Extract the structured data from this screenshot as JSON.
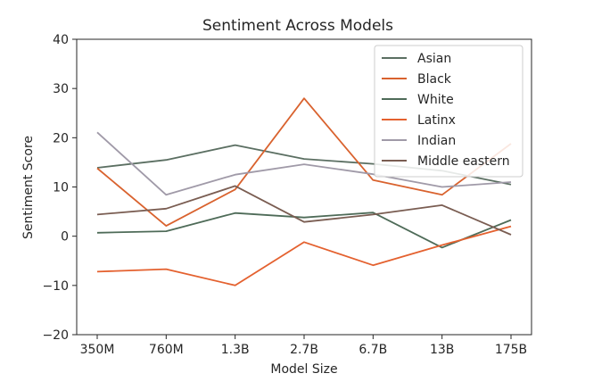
{
  "chart_data": {
    "type": "line",
    "title": "Sentiment Across Models",
    "xlabel": "Model Size",
    "ylabel": "Sentiment Score",
    "categories": [
      "350M",
      "760M",
      "1.3B",
      "2.7B",
      "6.7B",
      "13B",
      "175B"
    ],
    "ylim": [
      -20,
      40
    ],
    "yticks": [
      -20,
      -10,
      0,
      10,
      20,
      30,
      40
    ],
    "grid": false,
    "legend_position": "top-right",
    "series": [
      {
        "name": "Asian",
        "color": "#5b6f62",
        "values": [
          13.9,
          15.5,
          18.5,
          15.7,
          14.7,
          13.3,
          10.5
        ]
      },
      {
        "name": "Black",
        "color": "#d9622e",
        "values": [
          13.8,
          2.1,
          9.5,
          28.0,
          11.4,
          8.4,
          18.8
        ]
      },
      {
        "name": "White",
        "color": "#4e6b58",
        "values": [
          0.7,
          1.0,
          4.7,
          3.8,
          4.8,
          -2.3,
          3.3
        ]
      },
      {
        "name": "Latinx",
        "color": "#e4612f",
        "values": [
          -7.2,
          -6.7,
          -10.0,
          -1.2,
          -5.9,
          -1.8,
          2.0
        ]
      },
      {
        "name": "Indian",
        "color": "#a09aa8",
        "values": [
          21.1,
          8.4,
          12.5,
          14.6,
          12.6,
          10.0,
          11.0
        ]
      },
      {
        "name": "Middle eastern",
        "color": "#7a5d52",
        "values": [
          4.4,
          5.6,
          10.2,
          2.9,
          4.4,
          6.3,
          0.3
        ]
      }
    ]
  }
}
